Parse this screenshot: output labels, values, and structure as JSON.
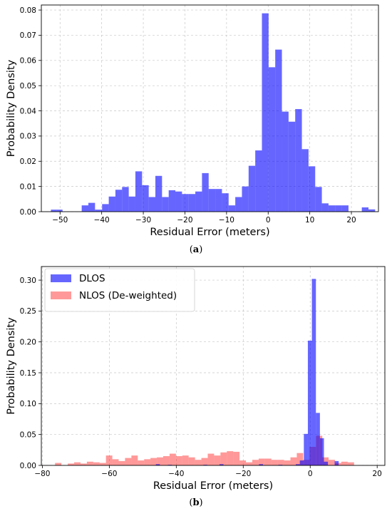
{
  "chart_data": [
    {
      "type": "histogram",
      "panel": "a",
      "caption": "(a)",
      "xlabel": "Residual Error (meters)",
      "ylabel": "Probability Density",
      "xlim": [
        -54.5,
        26.5
      ],
      "ylim": [
        0,
        0.082
      ],
      "xticks": [
        -50,
        -40,
        -30,
        -20,
        -10,
        0,
        10,
        20
      ],
      "yticks": [
        0.0,
        0.01,
        0.02,
        0.03,
        0.04,
        0.05,
        0.06,
        0.07,
        0.08
      ],
      "ytick_decimals": 2,
      "grid": true,
      "series": [
        {
          "name": "",
          "color": "#0000ff",
          "opacity": 0.6,
          "bins": [
            [
              -52.2,
              -50.8,
              0.0008
            ],
            [
              -50.8,
              -49.4,
              0.0008
            ],
            [
              -44.8,
              -43.2,
              0.0025
            ],
            [
              -43.2,
              -41.6,
              0.0035
            ],
            [
              -41.6,
              -39.9,
              0.0008
            ],
            [
              -39.9,
              -38.3,
              0.003
            ],
            [
              -38.3,
              -36.7,
              0.006
            ],
            [
              -36.7,
              -35.1,
              0.0087
            ],
            [
              -35.1,
              -33.5,
              0.0098
            ],
            [
              -33.5,
              -31.9,
              0.006
            ],
            [
              -31.9,
              -30.3,
              0.016
            ],
            [
              -30.3,
              -28.7,
              0.0105
            ],
            [
              -28.7,
              -27.1,
              0.0058
            ],
            [
              -27.1,
              -25.5,
              0.0142
            ],
            [
              -25.5,
              -23.9,
              0.0058
            ],
            [
              -23.9,
              -22.3,
              0.0085
            ],
            [
              -22.3,
              -20.7,
              0.008
            ],
            [
              -20.7,
              -19.1,
              0.007
            ],
            [
              -19.1,
              -17.5,
              0.007
            ],
            [
              -17.5,
              -15.9,
              0.008
            ],
            [
              -15.9,
              -14.3,
              0.0153
            ],
            [
              -14.3,
              -12.7,
              0.009
            ],
            [
              -12.7,
              -11.1,
              0.009
            ],
            [
              -11.1,
              -9.5,
              0.0073
            ],
            [
              -9.5,
              -7.9,
              0.0025
            ],
            [
              -7.9,
              -6.3,
              0.0058
            ],
            [
              -6.3,
              -4.7,
              0.01
            ],
            [
              -4.7,
              -3.1,
              0.0182
            ],
            [
              -3.1,
              -1.5,
              0.0243
            ],
            [
              -1.5,
              0.1,
              0.0787
            ],
            [
              0.1,
              1.7,
              0.0573
            ],
            [
              1.7,
              3.3,
              0.0643
            ],
            [
              3.3,
              4.9,
              0.0397
            ],
            [
              4.9,
              6.5,
              0.0357
            ],
            [
              6.5,
              8.1,
              0.0407
            ],
            [
              8.1,
              9.7,
              0.0248
            ],
            [
              9.7,
              11.3,
              0.018
            ],
            [
              11.3,
              12.9,
              0.0098
            ],
            [
              12.9,
              14.5,
              0.0033
            ],
            [
              14.5,
              16.1,
              0.0025
            ],
            [
              16.1,
              17.7,
              0.0025
            ],
            [
              17.7,
              19.3,
              0.0025
            ],
            [
              22.5,
              24.1,
              0.0017
            ],
            [
              24.1,
              25.7,
              0.0009
            ]
          ]
        }
      ]
    },
    {
      "type": "histogram",
      "panel": "b",
      "caption": "(b)",
      "xlabel": "Residual Error (meters)",
      "ylabel": "Probability Density",
      "xlim": [
        -80.3,
        22.3
      ],
      "ylim": [
        0,
        0.322
      ],
      "xticks": [
        -80,
        -60,
        -40,
        -20,
        0,
        20
      ],
      "yticks": [
        0.0,
        0.05,
        0.1,
        0.15,
        0.2,
        0.25,
        0.3
      ],
      "ytick_decimals": 2,
      "grid": true,
      "legend": {
        "position": "top-left"
      },
      "series": [
        {
          "name": "NLOS (De-weighted)",
          "color": "#ff0000",
          "opacity": 0.4,
          "bins": [
            [
              -76.2,
              -74.3,
              0.004
            ],
            [
              -74.3,
              -72.4,
              0
            ],
            [
              -72.4,
              -70.5,
              0.003
            ],
            [
              -70.5,
              -68.6,
              0.005
            ],
            [
              -68.6,
              -66.7,
              0.003
            ],
            [
              -66.7,
              -64.8,
              0.006
            ],
            [
              -64.8,
              -62.9,
              0.005
            ],
            [
              -62.9,
              -61.0,
              0.004
            ],
            [
              -61.0,
              -59.1,
              0.016
            ],
            [
              -59.1,
              -57.2,
              0.01
            ],
            [
              -57.2,
              -55.3,
              0.007
            ],
            [
              -55.3,
              -53.4,
              0.012
            ],
            [
              -53.4,
              -51.5,
              0.016
            ],
            [
              -51.5,
              -49.6,
              0.008
            ],
            [
              -49.6,
              -47.7,
              0.01
            ],
            [
              -47.7,
              -45.8,
              0.012
            ],
            [
              -45.8,
              -43.9,
              0.013
            ],
            [
              -43.9,
              -42.0,
              0.015
            ],
            [
              -42.0,
              -40.1,
              0.019
            ],
            [
              -40.1,
              -38.2,
              0.015
            ],
            [
              -38.2,
              -36.3,
              0.016
            ],
            [
              -36.3,
              -34.4,
              0.013
            ],
            [
              -34.4,
              -32.5,
              0.009
            ],
            [
              -32.5,
              -30.6,
              0.012
            ],
            [
              -30.6,
              -28.7,
              0.019
            ],
            [
              -28.7,
              -26.8,
              0.016
            ],
            [
              -26.8,
              -24.9,
              0.021
            ],
            [
              -24.9,
              -23.0,
              0.023
            ],
            [
              -23.0,
              -21.1,
              0.022
            ],
            [
              -21.1,
              -19.2,
              0.008
            ],
            [
              -19.2,
              -17.3,
              0.005
            ],
            [
              -17.3,
              -15.4,
              0.009
            ],
            [
              -15.4,
              -13.5,
              0.011
            ],
            [
              -13.5,
              -11.6,
              0.011
            ],
            [
              -11.6,
              -9.7,
              0.009
            ],
            [
              -9.7,
              -7.8,
              0.009
            ],
            [
              -7.8,
              -5.9,
              0.008
            ],
            [
              -5.9,
              -4.0,
              0.013
            ],
            [
              -4.0,
              -2.1,
              0.02
            ],
            [
              -2.1,
              -0.2,
              0.009
            ],
            [
              -0.2,
              1.7,
              0.03
            ],
            [
              1.7,
              3.6,
              0.048
            ],
            [
              3.6,
              5.5,
              0.013
            ],
            [
              5.5,
              7.4,
              0.009
            ],
            [
              7.4,
              9.3,
              0.004
            ],
            [
              9.3,
              11.2,
              0.006
            ],
            [
              11.2,
              13.1,
              0.005
            ]
          ]
        },
        {
          "name": "DLOS",
          "color": "#0000ff",
          "opacity": 0.6,
          "bins": [
            [
              -46.1,
              -44.9,
              0.002
            ],
            [
              -42.5,
              -41.3,
              0.001
            ],
            [
              -31.9,
              -30.7,
              0.001
            ],
            [
              -27.1,
              -25.9,
              0.002
            ],
            [
              -15.3,
              -14.1,
              0.002
            ],
            [
              -9.5,
              -8.3,
              0.001
            ],
            [
              -4.3,
              -3.1,
              0.002
            ],
            [
              -3.1,
              -1.9,
              0.008
            ],
            [
              -1.9,
              -0.7,
              0.051
            ],
            [
              -0.7,
              0.5,
              0.202
            ],
            [
              0.5,
              1.7,
              0.302
            ],
            [
              1.7,
              2.9,
              0.085
            ],
            [
              2.9,
              4.1,
              0.044
            ],
            [
              4.1,
              5.3,
              0.006
            ],
            [
              7.3,
              8.5,
              0.007
            ]
          ]
        }
      ]
    }
  ]
}
